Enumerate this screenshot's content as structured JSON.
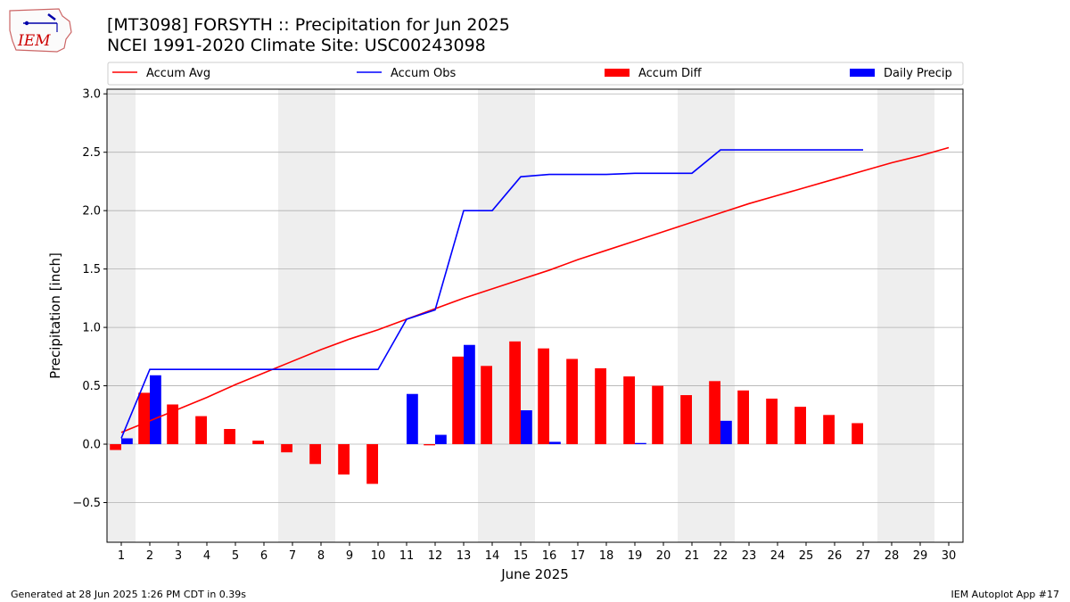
{
  "header": {
    "title_line1": "[MT3098] FORSYTH :: Precipitation for Jun 2025",
    "title_line2": "NCEI 1991-2020 Climate Site: USC00243098",
    "logo_text": "IEM"
  },
  "footer": {
    "generated": "Generated at 28 Jun 2025 1:26 PM CDT in 0.39s",
    "app": "IEM Autoplot App #17"
  },
  "colors": {
    "accum_avg": "#ff0000",
    "accum_obs": "#0000ff",
    "accum_diff": "#ff0000",
    "daily_precip": "#0000ff",
    "weekend_shade": "#eeeeee",
    "grid": "#b0b0b0"
  },
  "chart_data": {
    "type": "bar",
    "xlabel": "June 2025",
    "ylabel": "Precipitation [inch]",
    "xlim": [
      0.5,
      30.5
    ],
    "ylim": [
      -0.84,
      3.04
    ],
    "grid": true,
    "legend_placement": "top",
    "days": [
      1,
      2,
      3,
      4,
      5,
      6,
      7,
      8,
      9,
      10,
      11,
      12,
      13,
      14,
      15,
      16,
      17,
      18,
      19,
      20,
      21,
      22,
      23,
      24,
      25,
      26,
      27,
      28,
      29,
      30
    ],
    "x_tick_labels": [
      "1",
      "2",
      "3",
      "4",
      "5",
      "6",
      "7",
      "8",
      "9",
      "10",
      "11",
      "12",
      "13",
      "14",
      "15",
      "16",
      "17",
      "18",
      "19",
      "20",
      "21",
      "22",
      "23",
      "24",
      "25",
      "26",
      "27",
      "28",
      "29",
      "30"
    ],
    "y_ticks": [
      -0.5,
      0.0,
      0.5,
      1.0,
      1.5,
      2.0,
      2.5,
      3.0
    ],
    "y_tick_labels": [
      "−0.5",
      "0.0",
      "0.5",
      "1.0",
      "1.5",
      "2.0",
      "2.5",
      "3.0"
    ],
    "weekend_spans": [
      [
        0.5,
        1.5
      ],
      [
        6.5,
        8.5
      ],
      [
        13.5,
        15.5
      ],
      [
        20.5,
        22.5
      ],
      [
        27.5,
        29.5
      ]
    ],
    "legend": [
      "Accum Avg",
      "Accum Obs",
      "Accum Diff",
      "Daily Precip"
    ],
    "series": [
      {
        "name": "Accum Avg",
        "kind": "line",
        "values": [
          0.1,
          0.2,
          0.3,
          0.4,
          0.51,
          0.61,
          0.71,
          0.81,
          0.9,
          0.98,
          1.07,
          1.16,
          1.25,
          1.33,
          1.41,
          1.49,
          1.58,
          1.66,
          1.74,
          1.82,
          1.9,
          1.98,
          2.06,
          2.13,
          2.2,
          2.27,
          2.34,
          2.41,
          2.47,
          2.54
        ]
      },
      {
        "name": "Accum Obs",
        "kind": "line",
        "values": [
          0.05,
          0.64,
          0.64,
          0.64,
          0.64,
          0.64,
          0.64,
          0.64,
          0.64,
          0.64,
          1.07,
          1.15,
          2.0,
          2.0,
          2.29,
          2.31,
          2.31,
          2.31,
          2.32,
          2.32,
          2.32,
          2.52,
          2.52,
          2.52,
          2.52,
          2.52,
          2.52,
          null,
          null,
          null
        ]
      },
      {
        "name": "Accum Diff",
        "kind": "bar",
        "values": [
          -0.05,
          0.44,
          0.34,
          0.24,
          0.13,
          0.03,
          -0.07,
          -0.17,
          -0.26,
          -0.34,
          0.0,
          -0.01,
          0.75,
          0.67,
          0.88,
          0.82,
          0.73,
          0.65,
          0.58,
          0.5,
          0.42,
          0.54,
          0.46,
          0.39,
          0.32,
          0.25,
          0.18,
          null,
          null,
          null
        ]
      },
      {
        "name": "Daily Precip",
        "kind": "bar",
        "values": [
          0.05,
          0.59,
          0.0,
          0.0,
          0.0,
          0.0,
          0.0,
          0.0,
          0.0,
          0.0,
          0.43,
          0.08,
          0.85,
          0.0,
          0.29,
          0.02,
          0.0,
          0.0,
          0.01,
          0.0,
          0.0,
          0.2,
          0.0,
          0.0,
          0.0,
          0.0,
          0.0,
          null,
          null,
          null
        ]
      }
    ]
  }
}
